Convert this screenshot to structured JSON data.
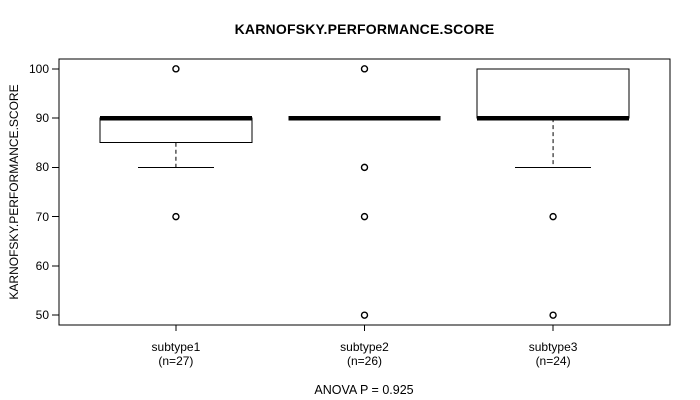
{
  "chart_data": {
    "type": "boxplot",
    "title": "KARNOFSKY.PERFORMANCE.SCORE",
    "ylabel": "KARNOFSKY.PERFORMANCE.SCORE",
    "footnote": "ANOVA P = 0.925",
    "ylim": [
      48,
      102
    ],
    "yticks": [
      50,
      60,
      70,
      80,
      90,
      100
    ],
    "grid": false,
    "colors": {
      "stroke": "#000000",
      "box_fill": "#ffffff"
    },
    "groups": [
      {
        "label": "subtype1",
        "n_label": "(n=27)",
        "n": 27,
        "q1": 85,
        "median": 90,
        "q3": 90,
        "whisker_low": 80,
        "whisker_high": 90,
        "outliers": [
          100,
          70
        ]
      },
      {
        "label": "subtype2",
        "n_label": "(n=26)",
        "n": 26,
        "q1": 90,
        "median": 90,
        "q3": 90,
        "whisker_low": 90,
        "whisker_high": 90,
        "outliers": [
          100,
          80,
          70,
          50
        ]
      },
      {
        "label": "subtype3",
        "n_label": "(n=24)",
        "n": 24,
        "q1": 90,
        "median": 90,
        "q3": 100,
        "whisker_low": 80,
        "whisker_high": 100,
        "outliers": [
          70,
          50
        ]
      }
    ]
  }
}
